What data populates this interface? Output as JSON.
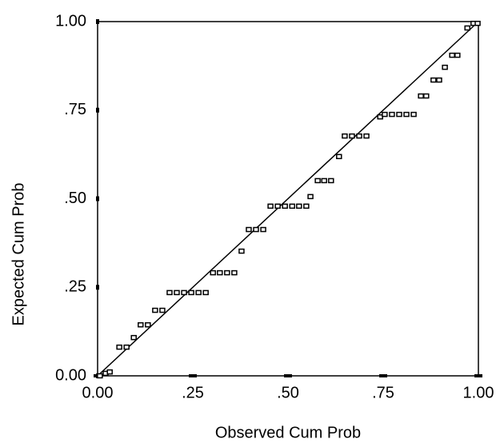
{
  "chart_data": {
    "type": "scatter",
    "x_label": "Observed Cum Prob",
    "y_label": "Expected Cum Prob",
    "xlim": [
      0,
      1
    ],
    "ylim": [
      0,
      1
    ],
    "xticks": [
      {
        "value": 0,
        "label": "0.00"
      },
      {
        "value": 0.25,
        "label": ".25"
      },
      {
        "value": 0.5,
        "label": ".50"
      },
      {
        "value": 0.75,
        "label": ".75"
      },
      {
        "value": 1,
        "label": "1.00"
      }
    ],
    "yticks": [
      {
        "value": 0,
        "label": "0.00"
      },
      {
        "value": 0.25,
        "label": ".25"
      },
      {
        "value": 0.5,
        "label": ".50"
      },
      {
        "value": 0.75,
        "label": ".75"
      },
      {
        "value": 1,
        "label": "1.00"
      }
    ],
    "diagonal_line": true,
    "color": "#000000",
    "x": [
      0.006,
      0.021,
      0.032,
      0.057,
      0.076,
      0.095,
      0.113,
      0.132,
      0.151,
      0.17,
      0.189,
      0.208,
      0.227,
      0.246,
      0.265,
      0.284,
      0.303,
      0.321,
      0.34,
      0.359,
      0.378,
      0.397,
      0.416,
      0.435,
      0.454,
      0.473,
      0.492,
      0.511,
      0.529,
      0.548,
      0.559,
      0.578,
      0.595,
      0.613,
      0.634,
      0.649,
      0.668,
      0.687,
      0.706,
      0.742,
      0.754,
      0.773,
      0.792,
      0.811,
      0.83,
      0.849,
      0.863,
      0.882,
      0.897,
      0.912,
      0.931,
      0.945,
      0.971,
      0.987,
      0.998
    ],
    "values": [
      0.0,
      0.007,
      0.011,
      0.081,
      0.081,
      0.108,
      0.144,
      0.144,
      0.185,
      0.185,
      0.235,
      0.235,
      0.235,
      0.235,
      0.235,
      0.235,
      0.291,
      0.291,
      0.291,
      0.291,
      0.352,
      0.413,
      0.413,
      0.413,
      0.479,
      0.479,
      0.479,
      0.479,
      0.479,
      0.479,
      0.506,
      0.551,
      0.551,
      0.551,
      0.619,
      0.677,
      0.677,
      0.677,
      0.677,
      0.731,
      0.738,
      0.738,
      0.738,
      0.738,
      0.738,
      0.79,
      0.79,
      0.835,
      0.835,
      0.871,
      0.905,
      0.905,
      0.982,
      0.995,
      0.995
    ]
  }
}
